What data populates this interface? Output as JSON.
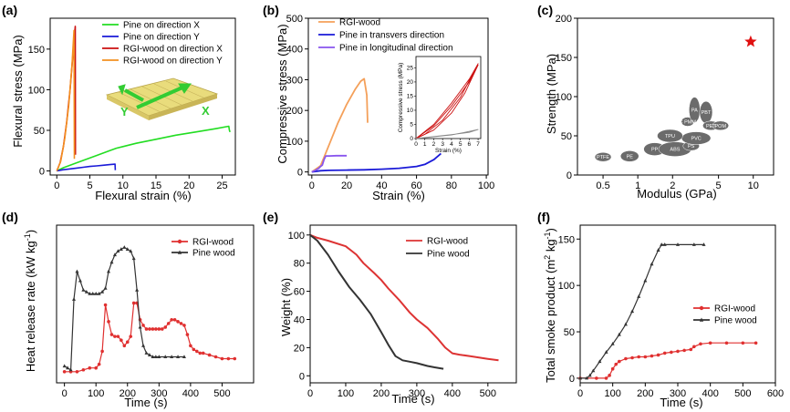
{
  "panels": {
    "a": {
      "label": "(a)"
    },
    "b": {
      "label": "(b)"
    },
    "c": {
      "label": "(c)"
    },
    "d": {
      "label": "(d)"
    },
    "e": {
      "label": "(e)"
    },
    "f": {
      "label": "(f)"
    }
  },
  "chart_data": [
    {
      "panel": "(a)",
      "type": "line",
      "xlabel": "Flexural strain (%)",
      "ylabel": "Flexural stress (MPa)",
      "xlim": [
        -1,
        27
      ],
      "ylim": [
        -5,
        188
      ],
      "xticks": [
        0,
        5,
        10,
        15,
        20,
        25
      ],
      "yticks": [
        0,
        50,
        100,
        150
      ],
      "inset_labels": {
        "y": "Y",
        "x": "X"
      },
      "series": [
        {
          "name": "Pine on direction X",
          "color": "#22dd22",
          "x": [
            0,
            1,
            3,
            6,
            8,
            9,
            10,
            12,
            15,
            18,
            21,
            24,
            26,
            26.1,
            26.2
          ],
          "y": [
            0,
            4,
            10,
            19,
            25,
            28,
            30,
            34,
            39,
            44,
            48,
            52,
            55,
            50,
            48
          ]
        },
        {
          "name": "Pine on direction Y",
          "color": "#1a1ad8",
          "x": [
            0,
            1,
            2,
            3,
            4,
            5,
            6,
            7,
            8,
            8.8,
            8.85
          ],
          "y": [
            0,
            1.5,
            2.5,
            3.5,
            4.5,
            5.5,
            6.2,
            7,
            7.8,
            8.3,
            1
          ]
        },
        {
          "name": "RGI-wood on direction X",
          "color": "#cc1111",
          "x": [
            0,
            0.5,
            1,
            1.5,
            2,
            2.5,
            2.8,
            2.82
          ],
          "y": [
            0,
            10,
            30,
            60,
            100,
            150,
            178,
            20
          ]
        },
        {
          "name": "RGI-wood on direction Y",
          "color": "#f39020",
          "x": [
            0,
            0.6,
            1.2,
            1.8,
            2.3,
            2.6,
            2.65
          ],
          "y": [
            0,
            12,
            40,
            80,
            130,
            173,
            15
          ]
        }
      ]
    },
    {
      "panel": "(b)",
      "type": "line",
      "xlabel": "Strain (%)",
      "ylabel": "Compressive stress (MPa)",
      "xlim": [
        -2,
        101
      ],
      "ylim": [
        -10,
        500
      ],
      "xticks": [
        0,
        20,
        40,
        60,
        80,
        100
      ],
      "yticks": [
        0,
        100,
        200,
        300,
        400,
        500
      ],
      "series": [
        {
          "name": "RGI-wood",
          "color": "#f4a05a",
          "x": [
            0,
            5,
            10,
            15,
            20,
            25,
            28,
            30,
            31.5,
            32
          ],
          "y": [
            0,
            20,
            90,
            160,
            220,
            270,
            295,
            303,
            250,
            160
          ]
        },
        {
          "name": "Pine in transvers direction",
          "color": "#1a1ad8",
          "x": [
            0,
            5,
            10,
            20,
            30,
            40,
            50,
            60,
            65,
            70,
            74
          ],
          "y": [
            0,
            4,
            5,
            6,
            7,
            9,
            12,
            18,
            25,
            40,
            60
          ]
        },
        {
          "name": "Pine in longitudinal direction",
          "color": "#8855ee",
          "x": [
            0,
            2,
            4,
            5,
            6,
            7,
            8,
            10,
            14,
            18,
            20
          ],
          "y": [
            0,
            5,
            12,
            18,
            22,
            40,
            52,
            52,
            53,
            53,
            53
          ]
        }
      ],
      "inset": {
        "type": "line",
        "xlabel": "Strain (%)",
        "ylabel": "Compressive stress (MPa)",
        "xlim": [
          0,
          7.3
        ],
        "ylim": [
          0,
          29
        ],
        "xticks": [
          0,
          1,
          2,
          3,
          4,
          5,
          6,
          7
        ],
        "yticks": [
          0,
          5,
          10,
          15,
          20,
          25
        ],
        "loops": [
          {
            "color": "#cc1111",
            "x": [
              0,
              2,
              4,
              6,
              7,
              5.5,
              4,
              2,
              0
            ],
            "y": [
              0,
              4.5,
              11.5,
              20,
              26,
              16,
              9,
              3,
              0
            ]
          },
          {
            "color": "#cc1111",
            "x": [
              0,
              2,
              4,
              6,
              7,
              5,
              3,
              1,
              0
            ],
            "y": [
              0,
              5,
              12.5,
              21,
              26.5,
              14.5,
              6.5,
              1.5,
              0
            ]
          },
          {
            "color": "#888888",
            "x": [
              0,
              2.5,
              4,
              5.5,
              7,
              6,
              4,
              0
            ],
            "y": [
              0,
              0.8,
              1.3,
              2.2,
              3.2,
              2.2,
              1.4,
              0
            ]
          }
        ]
      }
    },
    {
      "panel": "(c)",
      "type": "scatter",
      "xlabel": "Modulus (GPa)",
      "ylabel": "Strength (MPa)",
      "xscale": "log",
      "xlim": [
        0.3,
        15
      ],
      "ylim": [
        0,
        200
      ],
      "xticks": [
        0.5,
        1,
        2,
        5,
        10
      ],
      "xtick_labels": [
        "0.5",
        "1",
        "2",
        "5",
        "10"
      ],
      "yticks": [
        0,
        50,
        100,
        150,
        200
      ],
      "highlight_point": {
        "x": 9.5,
        "y": 170,
        "color": "#e01010",
        "marker": "star"
      },
      "materials": [
        {
          "label": "PTFE",
          "x": 0.5,
          "y": 23
        },
        {
          "label": "PE",
          "x": 0.85,
          "y": 24
        },
        {
          "label": "PP",
          "x": 1.4,
          "y": 33
        },
        {
          "label": "ABS",
          "x": 2.1,
          "y": 33
        },
        {
          "label": "PS",
          "x": 2.9,
          "y": 37
        },
        {
          "label": "PVC",
          "x": 3.2,
          "y": 47
        },
        {
          "label": "TPU",
          "x": 1.9,
          "y": 50
        },
        {
          "label": "PC PMMA",
          "x": 2.7,
          "y": 68
        },
        {
          "label": "PA",
          "x": 3.1,
          "y": 83
        },
        {
          "label": "PBT",
          "x": 3.9,
          "y": 80
        },
        {
          "label": "PET",
          "x": 4.3,
          "y": 63
        },
        {
          "label": "POM",
          "x": 5.2,
          "y": 63
        }
      ]
    },
    {
      "panel": "(d)",
      "type": "line",
      "xlabel": "Time (s)",
      "ylabel": "Heat release rate (kW kg-1)",
      "ylabel_main": "Heat release rate (kW kg",
      "ylabel_sup": "-1",
      "ylabel_end": ")",
      "xlim": [
        -25,
        600
      ],
      "ylim": [
        -5,
        80
      ],
      "xticks": [
        0,
        100,
        200,
        300,
        400,
        500
      ],
      "yticks": [],
      "series": [
        {
          "name": "RGI-wood",
          "color": "#e03030",
          "x": [
            0,
            20,
            40,
            60,
            80,
            100,
            110,
            120,
            130,
            140,
            150,
            160,
            170,
            180,
            190,
            200,
            210,
            220,
            230,
            240,
            250,
            260,
            270,
            280,
            290,
            300,
            310,
            320,
            330,
            340,
            350,
            360,
            370,
            380,
            390,
            400,
            410,
            420,
            430,
            440,
            460,
            480,
            500,
            520,
            540
          ],
          "y": [
            1,
            1,
            1,
            2,
            3,
            3,
            5,
            12,
            37,
            28,
            21,
            20,
            20,
            18,
            15,
            17,
            20,
            38,
            38,
            29,
            26,
            24,
            24,
            24,
            24,
            24,
            24,
            25,
            27,
            29,
            29,
            28,
            27,
            26,
            21,
            15,
            13,
            12,
            11,
            11,
            10,
            9,
            8,
            8,
            8
          ]
        },
        {
          "name": "Pine wood",
          "color": "#333333",
          "x": [
            0,
            10,
            20,
            30,
            40,
            50,
            60,
            70,
            80,
            90,
            100,
            110,
            120,
            130,
            140,
            150,
            160,
            170,
            180,
            190,
            200,
            210,
            220,
            230,
            240,
            250,
            260,
            270,
            280,
            290,
            300,
            320,
            340,
            360,
            380
          ],
          "y": [
            4,
            3,
            2,
            40,
            55,
            50,
            45,
            44,
            43,
            43,
            43,
            43,
            44,
            46,
            55,
            60,
            64,
            66,
            67,
            68,
            67,
            66,
            62,
            45,
            25,
            15,
            11,
            10,
            9,
            9,
            9,
            9,
            9,
            9,
            9
          ]
        }
      ]
    },
    {
      "panel": "(e)",
      "type": "line",
      "xlabel": "Time (s)",
      "ylabel": "Weight (%)",
      "xlim": [
        0,
        580
      ],
      "ylim": [
        -5,
        107
      ],
      "xticks": [
        0,
        100,
        200,
        300,
        400,
        500
      ],
      "yticks": [
        0,
        20,
        40,
        60,
        80,
        100
      ],
      "series": [
        {
          "name": "RGI-wood",
          "color": "#dd3333",
          "x": [
            0,
            20,
            50,
            100,
            130,
            150,
            180,
            200,
            220,
            250,
            280,
            300,
            330,
            360,
            380,
            400,
            420,
            450,
            500,
            530
          ],
          "y": [
            100,
            98,
            96,
            92,
            86,
            80,
            73,
            68,
            62,
            54,
            45,
            40,
            34,
            26,
            20,
            16,
            15,
            14,
            12,
            11
          ]
        },
        {
          "name": "Pine wood",
          "color": "#333333",
          "x": [
            0,
            20,
            50,
            80,
            110,
            140,
            170,
            200,
            220,
            240,
            260,
            280,
            300,
            330,
            350,
            375
          ],
          "y": [
            100,
            96,
            86,
            74,
            63,
            54,
            44,
            31,
            22,
            14,
            11,
            10,
            9,
            7,
            6,
            5
          ]
        }
      ]
    },
    {
      "panel": "(f)",
      "type": "line",
      "xlabel": "Time (s)",
      "ylabel": "Total smoke product (m2 kg-1)",
      "ylabel_main": "Total smoke product (m",
      "ylabel_sup1": "2",
      "ylabel_mid": " kg",
      "ylabel_sup2": "-1",
      "ylabel_end": ")",
      "xlim": [
        0,
        600
      ],
      "ylim": [
        -5,
        165
      ],
      "xticks": [
        0,
        100,
        200,
        300,
        400,
        500,
        600
      ],
      "yticks": [
        0,
        50,
        100,
        150
      ],
      "series": [
        {
          "name": "RGI-wood",
          "color": "#e03030",
          "x": [
            0,
            50,
            80,
            90,
            100,
            110,
            120,
            140,
            160,
            180,
            200,
            220,
            240,
            260,
            280,
            300,
            320,
            340,
            350,
            370,
            400,
            450,
            500,
            540
          ],
          "y": [
            0,
            0,
            0,
            3,
            10,
            15,
            18,
            21,
            22,
            23,
            23,
            24,
            25,
            27,
            28,
            29,
            30,
            31,
            34,
            37,
            38,
            38,
            38,
            38
          ]
        },
        {
          "name": "Pine wood",
          "color": "#333333",
          "x": [
            0,
            20,
            30,
            40,
            60,
            80,
            100,
            120,
            140,
            160,
            180,
            200,
            220,
            240,
            250,
            260,
            300,
            350,
            380
          ],
          "y": [
            0,
            0,
            3,
            8,
            18,
            28,
            37,
            47,
            58,
            72,
            88,
            105,
            123,
            138,
            144,
            144,
            144,
            144,
            144
          ]
        }
      ]
    }
  ]
}
